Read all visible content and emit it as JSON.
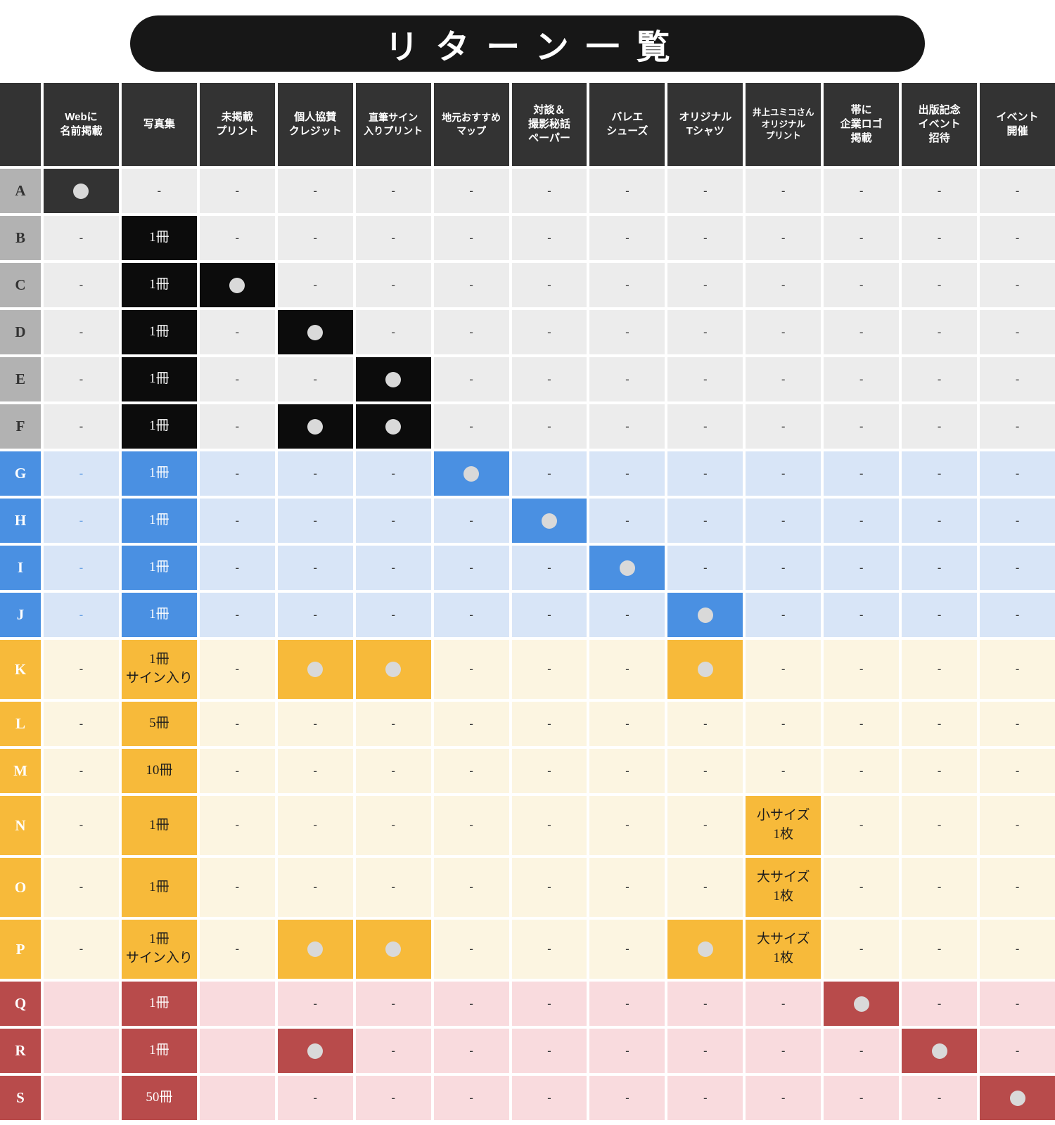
{
  "title": "リターン一覧",
  "chart_data": {
    "type": "table",
    "title": "リターン一覧",
    "symbols": {
      "included": "●",
      "not_included": "-"
    },
    "columns": [
      "Webに\n名前掲載",
      "写真集",
      "未掲載\nプリント",
      "個人協賛\nクレジット",
      "直筆サイン\n入りプリント",
      "地元おすすめ\nマップ",
      "対談＆\n撮影秘話\nペーパー",
      "バレエ\nシューズ",
      "オリジナル\nTシャツ",
      "井上ユミコさん\nオリジナル\nプリント",
      "帯に\n企業ロゴ\n掲載",
      "出版記念\nイベント\n招待",
      "イベント\n開催"
    ],
    "rows": [
      {
        "label": "A",
        "tier": "gray",
        "cells": [
          {
            "dot": true,
            "variant": "charcoal"
          },
          "-",
          "-",
          "-",
          "-",
          "-",
          "-",
          "-",
          "-",
          "-",
          "-",
          "-",
          "-"
        ]
      },
      {
        "label": "B",
        "tier": "gray",
        "cells": [
          "-",
          {
            "text": "1冊"
          },
          "-",
          "-",
          "-",
          "-",
          "-",
          "-",
          "-",
          "-",
          "-",
          "-",
          "-"
        ]
      },
      {
        "label": "C",
        "tier": "gray",
        "cells": [
          "-",
          {
            "text": "1冊"
          },
          {
            "dot": true
          },
          "-",
          "-",
          "-",
          "-",
          "-",
          "-",
          "-",
          "-",
          "-",
          "-"
        ]
      },
      {
        "label": "D",
        "tier": "gray",
        "cells": [
          "-",
          {
            "text": "1冊"
          },
          "-",
          {
            "dot": true
          },
          "-",
          "-",
          "-",
          "-",
          "-",
          "-",
          "-",
          "-",
          "-"
        ]
      },
      {
        "label": "E",
        "tier": "gray",
        "cells": [
          "-",
          {
            "text": "1冊"
          },
          "-",
          "-",
          {
            "dot": true
          },
          "-",
          "-",
          "-",
          "-",
          "-",
          "-",
          "-",
          "-"
        ]
      },
      {
        "label": "F",
        "tier": "gray",
        "cells": [
          "-",
          {
            "text": "1冊"
          },
          "-",
          {
            "dot": true
          },
          {
            "dot": true
          },
          "-",
          "-",
          "-",
          "-",
          "-",
          "-",
          "-",
          "-"
        ]
      },
      {
        "label": "G",
        "tier": "blue",
        "cells": [
          "-",
          {
            "text": "1冊"
          },
          "-",
          "-",
          "-",
          {
            "dot": true
          },
          "-",
          "-",
          "-",
          "-",
          "-",
          "-",
          "-"
        ]
      },
      {
        "label": "H",
        "tier": "blue",
        "cells": [
          "-",
          {
            "text": "1冊"
          },
          "-",
          "-",
          "-",
          "-",
          {
            "dot": true
          },
          "-",
          "-",
          "-",
          "-",
          "-",
          "-"
        ]
      },
      {
        "label": "I",
        "tier": "blue",
        "cells": [
          "-",
          {
            "text": "1冊"
          },
          "-",
          "-",
          "-",
          "-",
          "-",
          {
            "dot": true
          },
          "-",
          "-",
          "-",
          "-",
          "-"
        ]
      },
      {
        "label": "J",
        "tier": "blue",
        "cells": [
          "-",
          {
            "text": "1冊"
          },
          "-",
          "-",
          "-",
          "-",
          "-",
          "-",
          {
            "dot": true
          },
          "-",
          "-",
          "-",
          "-"
        ]
      },
      {
        "label": "K",
        "tier": "yellow",
        "cells": [
          "-",
          {
            "text": "1冊\nサイン入り"
          },
          "-",
          {
            "dot": true
          },
          {
            "dot": true
          },
          "-",
          "-",
          "-",
          {
            "dot": true
          },
          "-",
          "-",
          "-",
          "-"
        ]
      },
      {
        "label": "L",
        "tier": "yellow",
        "cells": [
          "-",
          {
            "text": "5冊"
          },
          "-",
          "-",
          "-",
          "-",
          "-",
          "-",
          "-",
          "-",
          "-",
          "-",
          "-"
        ]
      },
      {
        "label": "M",
        "tier": "yellow",
        "cells": [
          "-",
          {
            "text": "10冊"
          },
          "-",
          "-",
          "-",
          "-",
          "-",
          "-",
          "-",
          "-",
          "-",
          "-",
          "-"
        ]
      },
      {
        "label": "N",
        "tier": "yellow",
        "cells": [
          "-",
          {
            "text": "1冊"
          },
          "-",
          "-",
          "-",
          "-",
          "-",
          "-",
          "-",
          {
            "text": "小サイズ\n1枚"
          },
          "-",
          "-",
          "-"
        ]
      },
      {
        "label": "O",
        "tier": "yellow",
        "cells": [
          "-",
          {
            "text": "1冊"
          },
          "-",
          "-",
          "-",
          "-",
          "-",
          "-",
          "-",
          {
            "text": "大サイズ\n1枚"
          },
          "-",
          "-",
          "-"
        ]
      },
      {
        "label": "P",
        "tier": "yellow",
        "cells": [
          "-",
          {
            "text": "1冊\nサイン入り"
          },
          "-",
          {
            "dot": true
          },
          {
            "dot": true
          },
          "-",
          "-",
          "-",
          {
            "dot": true
          },
          {
            "text": "大サイズ\n1枚"
          },
          "-",
          "-",
          "-"
        ]
      },
      {
        "label": "Q",
        "tier": "red",
        "cells": [
          "",
          {
            "text": "1冊"
          },
          "",
          "-",
          "-",
          "-",
          "-",
          "-",
          "-",
          "-",
          {
            "dot": true
          },
          "-",
          "-"
        ]
      },
      {
        "label": "R",
        "tier": "red",
        "cells": [
          "",
          {
            "text": "1冊"
          },
          "",
          {
            "dot": true
          },
          "-",
          "-",
          "-",
          "-",
          "-",
          "-",
          "-",
          {
            "dot": true
          },
          "-"
        ]
      },
      {
        "label": "S",
        "tier": "red",
        "cells": [
          "",
          {
            "text": "50冊"
          },
          "",
          "-",
          "-",
          "-",
          "-",
          "-",
          "-",
          "-",
          "-",
          "-",
          {
            "dot": true
          }
        ]
      }
    ]
  },
  "colors": {
    "header_bg": "#333333",
    "title_pill_bg": "#171717",
    "dot": "#d9d9d9",
    "tier_gray": {
      "row_bg": "#ececec",
      "label_bg": "#b2b2b2",
      "highlight": "#0c0c0c",
      "highlight_alt": "#333333"
    },
    "tier_blue": {
      "row_bg": "#d8e5f7",
      "label_bg": "#4a90e2",
      "highlight": "#4a90e2"
    },
    "tier_yellow": {
      "row_bg": "#fcf5e1",
      "label_bg": "#f7ba3a",
      "highlight": "#f7ba3a"
    },
    "tier_red": {
      "row_bg": "#f9dbde",
      "label_bg": "#b84b4b",
      "highlight": "#b84b4b"
    }
  }
}
